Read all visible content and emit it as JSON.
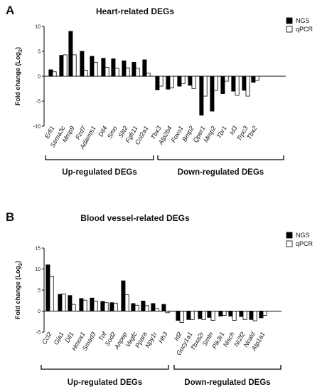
{
  "chart_data": [
    {
      "type": "bar",
      "panel_label": "A",
      "title": "Heart-related DEGs",
      "ylabel": "Fold change (Log",
      "ylabel_sub": "2",
      "ylabel_end": ")",
      "ylim": [
        -10,
        10
      ],
      "yticks": [
        "-10",
        "-5",
        "0",
        "5",
        "10"
      ],
      "legend_position": "top-right",
      "groups": [
        {
          "label": "Up-regulated DEGs",
          "range": [
            0,
            10
          ]
        },
        {
          "label": "Down-regulated DEGs",
          "range": [
            11,
            22
          ]
        }
      ],
      "categories": [
        "Erfi1",
        "Sema3c",
        "Mmp9",
        "Fzd7",
        "Adamts1",
        "Dll4",
        "Smo",
        "Slit2",
        "Fgfr11",
        "Col2a1",
        "Tbx3",
        "Atp2b4",
        "Foxo1",
        "Bmp2",
        "Qper1",
        "Mmp2",
        "Tbr1",
        "Id3",
        "Trpc3",
        "Tbx2"
      ],
      "series": [
        {
          "name": "NGS",
          "color": "#000000",
          "values": [
            1.3,
            4.2,
            9.0,
            5.0,
            4.0,
            3.6,
            3.5,
            3.1,
            2.8,
            3.3,
            -2.7,
            -2.6,
            -2.0,
            -1.8,
            -7.8,
            -7.0,
            -3.5,
            -3.0,
            -2.8,
            -1.2
          ]
        },
        {
          "name": "qPCR",
          "color": "#ffffff",
          "values": [
            0.9,
            4.3,
            4.3,
            1.2,
            2.8,
            1.8,
            1.6,
            1.7,
            1.6,
            0.6,
            -2.0,
            -2.3,
            -1.5,
            -2.5,
            -4.0,
            -2.8,
            -1.0,
            -3.8,
            -4.0,
            -0.8
          ]
        }
      ]
    },
    {
      "type": "bar",
      "panel_label": "B",
      "title": "Blood vessel-related DEGs",
      "ylabel": "Fold change (Log",
      "ylabel_sub": "2",
      "ylabel_end": ")",
      "ylim": [
        -5,
        15
      ],
      "yticks": [
        "-5",
        "0",
        "5",
        "10",
        "15"
      ],
      "legend_position": "top-right",
      "groups": [
        {
          "label": "Up-regulated DEGs",
          "range": [
            0,
            12
          ]
        },
        {
          "label": "Down-regulated DEGs",
          "range": [
            13,
            23
          ]
        }
      ],
      "categories": [
        "Ccl2",
        "Gja1",
        "Dll1",
        "Hmox1",
        "Smad3",
        "Tnf",
        "Sod2",
        "Anpep",
        "Vegfc",
        "Ppara",
        "Npy1r",
        "Hh3",
        "Id2",
        "Gucy1a1",
        "Tbxa2r",
        "Smtn",
        "Pik3r1",
        "Nisch",
        "Nr2f2",
        "Ncald",
        "Atp1a1"
      ],
      "series": [
        {
          "name": "NGS",
          "color": "#000000",
          "values": [
            11.0,
            4.0,
            3.7,
            3.0,
            3.1,
            2.3,
            2.0,
            7.2,
            1.8,
            2.4,
            1.8,
            1.6,
            -2.2,
            -2.0,
            -1.8,
            -1.5,
            -1.2,
            -1.2,
            -1.3,
            -2.0,
            -1.6
          ]
        },
        {
          "name": "qPCR",
          "color": "#ffffff",
          "values": [
            8.3,
            4.1,
            1.6,
            2.6,
            2.4,
            2.0,
            1.9,
            3.9,
            1.4,
            1.3,
            0.6,
            -0.4,
            -2.7,
            -2.0,
            -2.0,
            -2.2,
            -1.0,
            -2.2,
            -2.0,
            -2.3,
            -1.0
          ]
        }
      ]
    }
  ]
}
